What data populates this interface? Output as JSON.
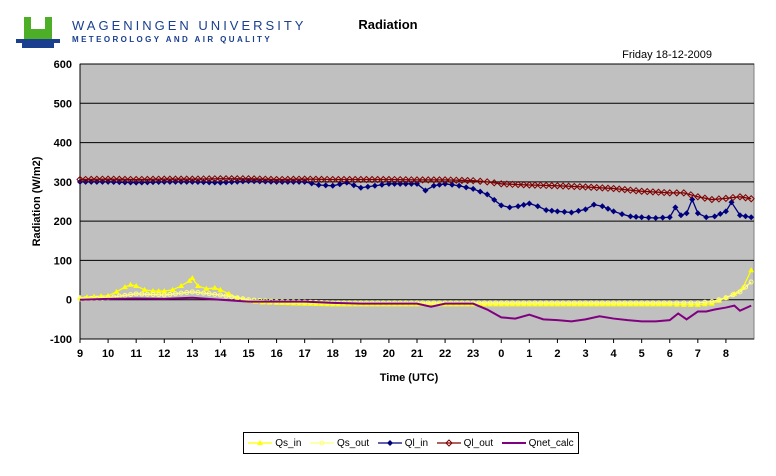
{
  "header": {
    "university": "WAGENINGEN UNIVERSITY",
    "department": "METEOROLOGY AND AIR QUALITY",
    "title": "Radiation",
    "date": "Friday 18-12-2009"
  },
  "colors": {
    "plot_bg": "#c0c0c0",
    "logo_green": "#4caf27",
    "logo_blue": "#1a3f8f"
  },
  "chart_data": {
    "type": "line",
    "xlabel": "Time (UTC)",
    "ylabel": "Radiation (W/m2)",
    "ylim": [
      -100,
      600
    ],
    "y_ticks": [
      -100,
      0,
      100,
      200,
      300,
      400,
      500,
      600
    ],
    "x_ticks": [
      "9",
      "10",
      "11",
      "12",
      "13",
      "14",
      "15",
      "16",
      "17",
      "18",
      "19",
      "20",
      "21",
      "22",
      "23",
      "0",
      "1",
      "2",
      "3",
      "4",
      "5",
      "6",
      "7",
      "8"
    ],
    "xlim_hours": [
      9,
      33
    ],
    "grid": "horizontal",
    "legend_position": "bottom",
    "series": [
      {
        "name": "Qs_in",
        "color": "#ffff00",
        "marker": "triangle",
        "x": [
          9,
          9.5,
          10,
          10.3,
          10.6,
          10.8,
          11,
          11.3,
          11.6,
          12,
          12.3,
          12.6,
          12.9,
          13,
          13.2,
          13.5,
          13.8,
          14,
          14.3,
          14.6,
          15,
          15.5,
          16,
          17,
          18,
          19,
          20,
          21,
          22,
          23,
          24,
          25,
          26,
          27,
          28,
          29,
          30,
          30.5,
          31,
          31.5,
          32,
          32.3,
          32.6,
          32.9
        ],
        "y": [
          5,
          8,
          10,
          20,
          32,
          38,
          35,
          25,
          22,
          22,
          25,
          35,
          48,
          55,
          35,
          28,
          30,
          25,
          15,
          5,
          -3,
          -7,
          -8,
          -10,
          -12,
          -12,
          -12,
          -12,
          -12,
          -12,
          -12,
          -12,
          -12,
          -12,
          -12,
          -12,
          -12,
          -13,
          -13,
          -10,
          5,
          15,
          30,
          75
        ]
      },
      {
        "name": "Qs_out",
        "color": "#ffff80",
        "marker": "circle",
        "x": [
          9,
          10,
          11,
          12,
          13,
          14,
          15,
          16,
          17,
          18,
          19,
          20,
          21,
          22,
          23,
          24,
          25,
          26,
          27,
          28,
          29,
          30,
          30.5,
          31,
          31.5,
          32,
          32.5,
          32.9
        ],
        "y": [
          2,
          5,
          15,
          12,
          20,
          12,
          0,
          -5,
          -6,
          -8,
          -8,
          -8,
          -8,
          -8,
          -8,
          -8,
          -8,
          -8,
          -8,
          -8,
          -8,
          -8,
          -8,
          -8,
          -5,
          5,
          20,
          45
        ]
      },
      {
        "name": "Ql_in",
        "color": "#00007f",
        "marker": "diamond",
        "x": [
          9,
          10,
          11,
          12,
          13,
          14,
          15,
          16,
          17,
          17.5,
          18,
          18.5,
          19,
          19.5,
          20,
          21,
          21.3,
          21.6,
          22,
          22.5,
          23,
          23.5,
          24,
          24.3,
          24.6,
          25,
          25.3,
          25.6,
          26,
          26.5,
          27,
          27.3,
          27.6,
          28,
          28.3,
          28.6,
          29,
          29.5,
          30,
          30.2,
          30.4,
          30.6,
          30.8,
          31,
          31.3,
          31.6,
          32,
          32.2,
          32.5,
          32.9
        ],
        "y": [
          300,
          300,
          298,
          300,
          300,
          298,
          302,
          300,
          300,
          292,
          290,
          298,
          285,
          290,
          295,
          295,
          278,
          290,
          295,
          290,
          282,
          268,
          240,
          235,
          238,
          245,
          238,
          228,
          225,
          222,
          230,
          242,
          238,
          225,
          218,
          212,
          210,
          208,
          210,
          235,
          215,
          220,
          255,
          220,
          210,
          212,
          225,
          248,
          215,
          210
        ]
      },
      {
        "name": "Ql_out",
        "color": "#7f0000",
        "marker": "diamond-open",
        "x": [
          9,
          10,
          11,
          12,
          13,
          14,
          15,
          16,
          17,
          18,
          19,
          20,
          21,
          22,
          23,
          23.5,
          24,
          25,
          26,
          27,
          28,
          29,
          30,
          30.5,
          31,
          31.5,
          32,
          32.5,
          32.9
        ],
        "y": [
          306,
          307,
          306,
          307,
          307,
          308,
          308,
          306,
          307,
          306,
          306,
          306,
          305,
          305,
          303,
          300,
          295,
          292,
          290,
          287,
          283,
          276,
          272,
          272,
          262,
          255,
          258,
          262,
          257
        ]
      },
      {
        "name": "Qnet_calc",
        "color": "#800080",
        "marker": "none",
        "x": [
          9,
          10,
          11,
          12,
          13,
          14,
          15,
          16,
          17,
          18,
          19,
          20,
          21,
          21.5,
          22,
          23,
          23.5,
          24,
          24.5,
          25,
          25.5,
          26,
          26.5,
          27,
          27.5,
          28,
          28.5,
          29,
          29.5,
          30,
          30.3,
          30.6,
          31,
          31.3,
          31.6,
          32,
          32.3,
          32.5,
          32.9
        ],
        "y": [
          0,
          2,
          3,
          2,
          5,
          0,
          -5,
          -5,
          -5,
          -8,
          -10,
          -10,
          -10,
          -18,
          -10,
          -10,
          -25,
          -45,
          -48,
          -38,
          -50,
          -52,
          -55,
          -50,
          -42,
          -48,
          -52,
          -55,
          -55,
          -52,
          -35,
          -50,
          -30,
          -30,
          -25,
          -20,
          -15,
          -28,
          -15
        ]
      }
    ]
  }
}
